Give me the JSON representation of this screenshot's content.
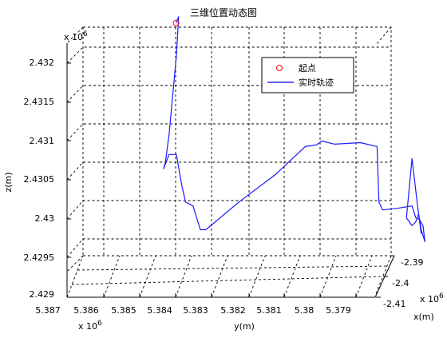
{
  "chart_data": {
    "type": "line",
    "title": "三维位置动态图",
    "xlabel": "x(m)",
    "ylabel": "y(m)",
    "zlabel": "z(m)",
    "x_exponent_label": "x 10",
    "x_exponent": "6",
    "y_exponent_label": "x 10",
    "y_exponent": "6",
    "z_exponent_label": "x 10",
    "z_exponent": "6",
    "x_ticks": [
      "-2.39",
      "-2.4",
      "-2.41"
    ],
    "y_ticks": [
      "5.387",
      "5.386",
      "5.385",
      "5.384",
      "5.383",
      "5.382",
      "5.381",
      "5.38",
      "5.379"
    ],
    "z_ticks": [
      "2.429",
      "2.4295",
      "2.43",
      "2.4305",
      "2.431",
      "2.4315",
      "2.432"
    ],
    "xlim": [
      -2.41,
      -2.39
    ],
    "ylim": [
      5.387,
      5.3785
    ],
    "zlim": [
      2.429,
      2.4324
    ],
    "grid": true,
    "legend_position": "top-right",
    "legend": {
      "start_label": "起点",
      "track_label": "实时轨迹"
    },
    "series": [
      {
        "name": "起点",
        "marker": "circle",
        "color": "#ff0000",
        "points": [
          [
            -2.4,
            5.38521,
            2.43216
          ]
        ]
      },
      {
        "name": "实时轨迹",
        "color": "#0000ff",
        "points": [
          [
            -2.4,
            5.38521,
            2.43216
          ],
          [
            -2.4,
            5.38514,
            2.43224
          ],
          [
            -2.4,
            5.3852,
            2.43175
          ],
          [
            -2.4,
            5.3853,
            2.43125
          ],
          [
            -2.4,
            5.3854,
            2.43075
          ],
          [
            -2.4,
            5.3855,
            2.4304
          ],
          [
            -2.4,
            5.38555,
            2.43032
          ],
          [
            -2.4,
            5.3854,
            2.4305
          ],
          [
            -2.4,
            5.3852,
            2.4305
          ],
          [
            -2.4,
            5.38505,
            2.4301
          ],
          [
            -2.4,
            5.38495,
            2.4299
          ],
          [
            -2.4,
            5.38475,
            2.42985
          ],
          [
            -2.4,
            5.38455,
            2.42955
          ],
          [
            -2.4,
            5.3844,
            2.42955
          ],
          [
            -2.4,
            5.3835,
            2.4299
          ],
          [
            -2.4,
            5.3825,
            2.43025
          ],
          [
            -2.4,
            5.3817,
            2.4306
          ],
          [
            -2.4,
            5.3814,
            2.43062
          ],
          [
            -2.4,
            5.38125,
            2.43067
          ],
          [
            -2.4,
            5.3809,
            2.43063
          ],
          [
            -2.4,
            5.3802,
            2.43065
          ],
          [
            -2.4,
            5.37975,
            2.4306
          ],
          [
            -2.4,
            5.3797,
            2.4299
          ],
          [
            -2.4,
            5.3796,
            2.4298
          ],
          [
            -2.4,
            5.3792,
            2.42982
          ],
          [
            -2.4,
            5.3788,
            2.42985
          ],
          [
            -2.4,
            5.3787,
            2.4297
          ],
          [
            -2.4,
            5.3786,
            2.42968
          ],
          [
            -2.4,
            5.3785,
            2.4296
          ],
          [
            -2.4,
            5.37845,
            2.4294
          ],
          [
            -2.4,
            5.37855,
            2.42955
          ],
          [
            -2.4,
            5.37862,
            2.42975
          ],
          [
            -2.4,
            5.3787,
            2.42965
          ],
          [
            -2.4,
            5.3788,
            2.4296
          ],
          [
            -2.4,
            5.37895,
            2.4297
          ],
          [
            -2.4,
            5.3788,
            2.43045
          ],
          [
            -2.4,
            5.37865,
            2.42985
          ],
          [
            -2.4,
            5.37855,
            2.4295
          ]
        ]
      }
    ]
  }
}
